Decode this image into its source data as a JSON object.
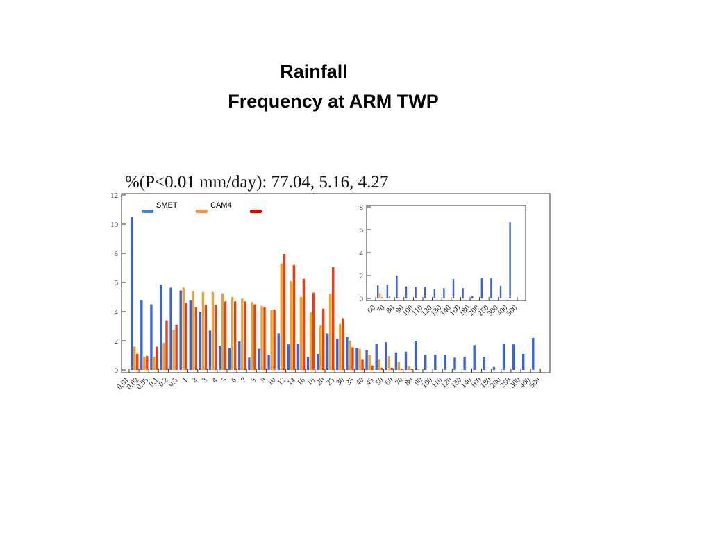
{
  "chart_data": [
    {
      "type": "histogram",
      "title": [
        "Rainfall",
        "Frequency at ARM TWP"
      ],
      "subtitle": "%(P<0.01 mm/day):  77.04,   5.16,   4.27",
      "bins": [
        0.01,
        0.02,
        0.05,
        0.1,
        0.2,
        0.5,
        1,
        2,
        3,
        4,
        5,
        6,
        7,
        8,
        9,
        10,
        12,
        14,
        16,
        18,
        20,
        25,
        30,
        35,
        40,
        45,
        50,
        60,
        70,
        80,
        90,
        100,
        110,
        120,
        130,
        140,
        160,
        180,
        200,
        250,
        300,
        400,
        500
      ],
      "series": [
        {
          "name": "SMET",
          "color": "#3a63d6",
          "legend_color": "#4a7fc1",
          "values": [
            10.5,
            4.8,
            4.5,
            5.85,
            5.65,
            5.45,
            4.8,
            4.0,
            2.7,
            1.65,
            1.5,
            1.95,
            0.85,
            1.45,
            1.05,
            2.5,
            1.75,
            1.8,
            0.9,
            1.1,
            2.5,
            2.15,
            2.25,
            1.5,
            1.35,
            1.8,
            1.9,
            1.2,
            1.25,
            2.0,
            1.05,
            1.05,
            1.0,
            0.85,
            0.9,
            1.7,
            0.9,
            0.2,
            1.8,
            1.75,
            1.1,
            2.2
          ]
        },
        {
          "name": "CAM4",
          "color": "#f5a01e",
          "legend_color": "#f0954a",
          "values": [
            1.6,
            0.9,
            0.9,
            1.85,
            2.75,
            5.65,
            5.4,
            5.35,
            5.35,
            5.25,
            5.0,
            4.9,
            4.65,
            4.4,
            4.1,
            7.3,
            6.1,
            5.0,
            3.95,
            3.05,
            5.2,
            3.15,
            2.0,
            1.45,
            1.0,
            0.7,
            0.95,
            0.55,
            0.25,
            0.1,
            0,
            0,
            0,
            0,
            0,
            0,
            0,
            0,
            0,
            0,
            0,
            0
          ]
        },
        {
          "color": "#e8401c",
          "legend_color": "#e00000",
          "values": [
            1.1,
            0.95,
            1.6,
            3.4,
            3.1,
            4.6,
            4.3,
            4.45,
            4.45,
            4.7,
            4.7,
            4.7,
            4.5,
            4.3,
            4.15,
            7.95,
            7.2,
            6.25,
            5.3,
            4.2,
            7.05,
            3.55,
            1.55,
            0.7,
            0.3,
            0.15,
            0.15,
            0.1,
            0.05,
            0,
            0,
            0,
            0,
            0,
            0,
            0,
            0,
            0,
            0,
            0,
            0,
            0
          ]
        }
      ],
      "ylim": [
        0,
        12
      ],
      "yticks": [
        0,
        2,
        4,
        6,
        8,
        10,
        12
      ]
    },
    {
      "type": "histogram",
      "bins": [
        60,
        70,
        80,
        90,
        100,
        110,
        120,
        130,
        140,
        160,
        180,
        200,
        250,
        300,
        400,
        500
      ],
      "series": [
        {
          "color": "#3a63d6",
          "values": [
            1.15,
            1.2,
            2.0,
            1.05,
            1.0,
            1.0,
            0.85,
            0.9,
            1.7,
            0.9,
            0.2,
            1.8,
            1.75,
            1.1,
            6.65
          ]
        },
        {
          "color": "#f5a01e",
          "values": [
            0.45,
            0.2,
            0.1,
            0,
            0,
            0,
            0,
            0,
            0,
            0,
            0,
            0,
            0,
            0,
            0
          ]
        },
        {
          "color": "#e8401c",
          "values": [
            0.1,
            0,
            0,
            0,
            0,
            0,
            0,
            0,
            0,
            0,
            0,
            0,
            0,
            0,
            0
          ]
        }
      ],
      "ylim": [
        0,
        8
      ],
      "yticks": [
        0,
        2,
        4,
        6,
        8
      ]
    }
  ]
}
